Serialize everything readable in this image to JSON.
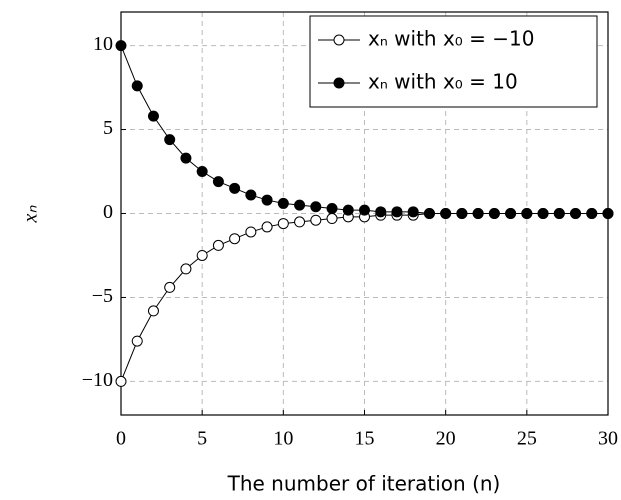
{
  "chart_data": {
    "type": "line",
    "x": [
      0,
      1,
      2,
      3,
      4,
      5,
      6,
      7,
      8,
      9,
      10,
      11,
      12,
      13,
      14,
      15,
      16,
      17,
      18,
      19,
      20,
      21,
      22,
      23,
      24,
      25,
      26,
      27,
      28,
      29,
      30
    ],
    "series": [
      {
        "name": "xₙ with x₀ = −10",
        "color": "#000000",
        "marker": "open-circle",
        "values": [
          -10,
          -7.6,
          -5.8,
          -4.4,
          -3.3,
          -2.5,
          -1.9,
          -1.5,
          -1.1,
          -0.8,
          -0.6,
          -0.5,
          -0.4,
          -0.3,
          -0.2,
          -0.2,
          -0.1,
          -0.1,
          -0.1,
          0,
          0,
          0,
          0,
          0,
          0,
          0,
          0,
          0,
          0,
          0,
          0
        ]
      },
      {
        "name": "xₙ with x₀ = 10",
        "color": "#000000",
        "marker": "filled-circle",
        "values": [
          10,
          7.6,
          5.8,
          4.4,
          3.3,
          2.5,
          1.9,
          1.5,
          1.1,
          0.8,
          0.6,
          0.5,
          0.4,
          0.3,
          0.2,
          0.2,
          0.1,
          0.1,
          0.1,
          0,
          0,
          0,
          0,
          0,
          0,
          0,
          0,
          0,
          0,
          0,
          0
        ]
      }
    ],
    "x_label": "The number of iteration (n)",
    "y_label": "xₙ",
    "xlim": [
      0,
      30
    ],
    "xticks": [
      0,
      5,
      10,
      15,
      20,
      25,
      30
    ],
    "ylim": [
      -12,
      12
    ],
    "yticks": [
      {
        "value": -10,
        "label": "−10"
      },
      {
        "value": -5,
        "label": "−5"
      },
      0,
      5,
      10
    ],
    "grid": true,
    "legend": "top-right"
  }
}
